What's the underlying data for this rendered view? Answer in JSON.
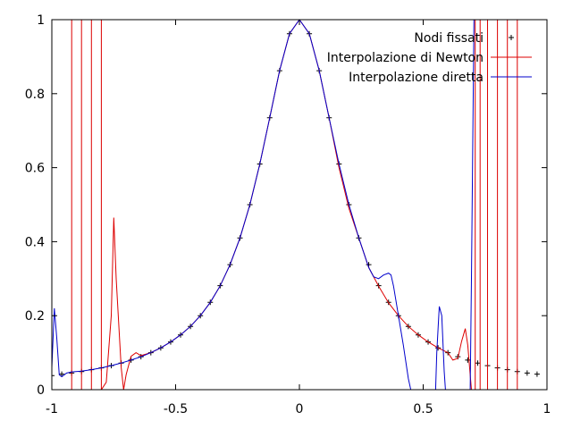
{
  "chart_data": {
    "type": "line",
    "title": "",
    "xlabel": "",
    "ylabel": "",
    "xlim": [
      -1,
      1
    ],
    "ylim": [
      0,
      1
    ],
    "grid": false,
    "legend_position": "top-right",
    "x_ticks": [
      {
        "value": -1,
        "label": "-1"
      },
      {
        "value": -0.5,
        "label": "-0.5"
      },
      {
        "value": 0,
        "label": "0"
      },
      {
        "value": 0.5,
        "label": "0.5"
      },
      {
        "value": 1,
        "label": "1"
      }
    ],
    "y_ticks": [
      {
        "value": 0,
        "label": "0"
      },
      {
        "value": 0.2,
        "label": "0.2"
      },
      {
        "value": 0.4,
        "label": "0.4"
      },
      {
        "value": 0.6,
        "label": "0.6"
      },
      {
        "value": 0.8,
        "label": "0.8"
      },
      {
        "value": 1,
        "label": "1"
      }
    ],
    "series": [
      {
        "name": "Nodi fissati",
        "kind": "points",
        "marker": "+",
        "color": "#000000",
        "x": [
          -1,
          -0.96,
          -0.92,
          -0.88,
          -0.84,
          -0.8,
          -0.76,
          -0.72,
          -0.68,
          -0.64,
          -0.6,
          -0.56,
          -0.52,
          -0.48,
          -0.44,
          -0.4,
          -0.36,
          -0.32,
          -0.28,
          -0.24,
          -0.2,
          -0.16,
          -0.12,
          -0.08,
          -0.04,
          0,
          0.04,
          0.08,
          0.12,
          0.16,
          0.2,
          0.24,
          0.28,
          0.32,
          0.36,
          0.4,
          0.44,
          0.48,
          0.52,
          0.56,
          0.6,
          0.64,
          0.68,
          0.72,
          0.76,
          0.8,
          0.84,
          0.88,
          0.92,
          0.96
        ],
        "y": [
          0.038,
          0.042,
          0.045,
          0.049,
          0.054,
          0.059,
          0.065,
          0.072,
          0.08,
          0.089,
          0.1,
          0.113,
          0.129,
          0.148,
          0.171,
          0.2,
          0.236,
          0.281,
          0.338,
          0.41,
          0.5,
          0.61,
          0.735,
          0.862,
          0.962,
          1,
          0.962,
          0.862,
          0.735,
          0.61,
          0.5,
          0.41,
          0.338,
          0.281,
          0.236,
          0.2,
          0.171,
          0.148,
          0.129,
          0.113,
          0.1,
          0.089,
          0.08,
          0.072,
          0.065,
          0.059,
          0.054,
          0.049,
          0.045,
          0.042
        ]
      },
      {
        "name": "Interpolazione di Newton",
        "kind": "line",
        "color": "#dd0000",
        "x": [
          -0.92,
          -0.92,
          -0.88,
          -0.88,
          -0.84,
          -0.84,
          -0.8,
          -0.8,
          -0.78,
          -0.76,
          -0.75,
          -0.74,
          -0.72,
          -0.71,
          -0.7,
          -0.68,
          -0.66,
          -0.64,
          -0.6,
          -0.56,
          -0.52,
          -0.48,
          -0.44,
          -0.4,
          -0.36,
          -0.32,
          -0.28,
          -0.24,
          -0.2,
          -0.16,
          -0.12,
          -0.08,
          -0.04,
          0,
          0.04,
          0.08,
          0.12,
          0.16,
          0.2,
          0.24,
          0.28,
          0.32,
          0.36,
          0.4,
          0.44,
          0.48,
          0.52,
          0.56,
          0.6,
          0.62,
          0.64,
          0.655,
          0.67,
          0.68,
          0.69,
          0.695,
          0.71,
          0.71,
          0.73,
          0.73,
          0.76,
          0.76,
          0.8,
          0.8,
          0.84,
          0.84,
          0.88,
          0.88
        ],
        "y": [
          0,
          1,
          1,
          0,
          0,
          1,
          1,
          0,
          0.02,
          0.2,
          0.465,
          0.3,
          0.06,
          0,
          0.04,
          0.09,
          0.1,
          0.092,
          0.1,
          0.113,
          0.129,
          0.148,
          0.171,
          0.2,
          0.236,
          0.281,
          0.338,
          0.41,
          0.5,
          0.61,
          0.735,
          0.862,
          0.962,
          1,
          0.962,
          0.862,
          0.735,
          0.6,
          0.49,
          0.41,
          0.33,
          0.28,
          0.235,
          0.2,
          0.171,
          0.148,
          0.129,
          0.113,
          0.1,
          0.08,
          0.085,
          0.13,
          0.165,
          0.12,
          0.04,
          0,
          0,
          1,
          1,
          0,
          0,
          1,
          1,
          0,
          0,
          1,
          1,
          0
        ]
      },
      {
        "name": "Interpolazione diretta",
        "kind": "line",
        "color": "#0000cc",
        "x": [
          -1,
          -0.99,
          -0.98,
          -0.97,
          -0.96,
          -0.94,
          -0.92,
          -0.88,
          -0.84,
          -0.8,
          -0.76,
          -0.72,
          -0.68,
          -0.64,
          -0.6,
          -0.56,
          -0.52,
          -0.48,
          -0.44,
          -0.4,
          -0.36,
          -0.32,
          -0.28,
          -0.24,
          -0.2,
          -0.16,
          -0.12,
          -0.08,
          -0.04,
          0,
          0.04,
          0.08,
          0.12,
          0.16,
          0.2,
          0.24,
          0.28,
          0.3,
          0.32,
          0.34,
          0.36,
          0.37,
          0.38,
          0.4,
          0.42,
          0.44,
          0.45,
          0.46,
          0.55,
          0.555,
          0.565,
          0.575,
          0.585,
          0.59,
          0.69,
          0.695,
          0.705,
          0.71,
          0.72
        ],
        "y": [
          0.06,
          0.22,
          0.14,
          0.04,
          0.035,
          0.045,
          0.048,
          0.05,
          0.054,
          0.059,
          0.065,
          0.072,
          0.08,
          0.089,
          0.1,
          0.113,
          0.129,
          0.148,
          0.171,
          0.2,
          0.236,
          0.281,
          0.338,
          0.41,
          0.5,
          0.61,
          0.735,
          0.862,
          0.962,
          1,
          0.962,
          0.862,
          0.735,
          0.61,
          0.5,
          0.41,
          0.33,
          0.305,
          0.3,
          0.31,
          0.315,
          0.31,
          0.28,
          0.2,
          0.12,
          0.03,
          0,
          0,
          0,
          0.1,
          0.225,
          0.2,
          0.05,
          0,
          0,
          0.3,
          1,
          1,
          1
        ]
      }
    ]
  }
}
